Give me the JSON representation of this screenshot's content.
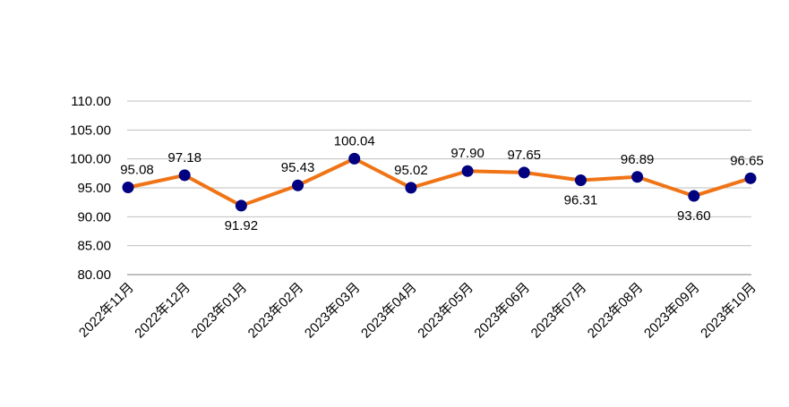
{
  "chart_data": {
    "type": "line",
    "title": "",
    "xlabel": "",
    "ylabel": "",
    "categories": [
      "2022年11月",
      "2022年12月",
      "2023年01月",
      "2023年02月",
      "2023年03月",
      "2023年04月",
      "2023年05月",
      "2023年06月",
      "2023年07月",
      "2023年08月",
      "2023年09月",
      "2023年10月"
    ],
    "series": [
      {
        "values": [
          95.08,
          97.18,
          91.92,
          95.43,
          100.04,
          95.02,
          97.9,
          97.65,
          96.31,
          96.89,
          93.6,
          96.65
        ]
      }
    ],
    "data_labels": [
      "95.08",
      "97.18",
      "91.92",
      "95.43",
      "100.04",
      "95.02",
      "97.90",
      "97.65",
      "96.31",
      "96.89",
      "93.60",
      "96.65"
    ],
    "label_positions": [
      "above",
      "above",
      "below",
      "above",
      "above",
      "above",
      "above",
      "above",
      "below",
      "above",
      "below",
      "above"
    ],
    "ylim": [
      80,
      110
    ],
    "yticks": [
      80,
      85,
      90,
      95,
      100,
      105,
      110
    ],
    "ytick_labels": [
      "80.00",
      "85.00",
      "90.00",
      "95.00",
      "100.00",
      "105.00",
      "110.00"
    ],
    "grid": true,
    "legend": "none",
    "colors": {
      "line": "#f07416",
      "marker": "#000080",
      "grid": "#bfbfbf",
      "axis": "#7f7f7f"
    }
  }
}
